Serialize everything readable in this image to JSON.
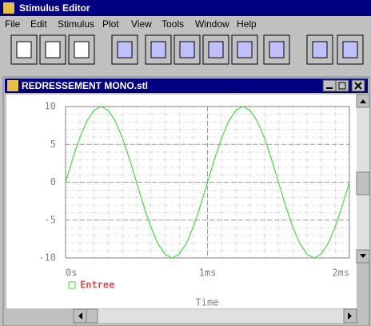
{
  "window_title": "Stimulus Editor",
  "menu": [
    "File",
    "Edit",
    "Stimulus",
    "Plot",
    "View",
    "Tools",
    "Window",
    "Help"
  ],
  "document_title": "REDRESSEMENT MONO.stl",
  "chart_data": {
    "type": "line",
    "x": [
      0,
      5e-05,
      0.0001,
      0.00015,
      0.0002,
      0.00025,
      0.0003,
      0.00035,
      0.0004,
      0.00045,
      0.0005,
      0.00055,
      0.0006,
      0.00065,
      0.0007,
      0.00075,
      0.0008,
      0.00085,
      0.0009,
      0.00095,
      0.001,
      0.00105,
      0.0011,
      0.00115,
      0.0012,
      0.00125,
      0.0013,
      0.00135,
      0.0014,
      0.00145,
      0.0015,
      0.00155,
      0.0016,
      0.00165,
      0.0017,
      0.00175,
      0.0018,
      0.00185,
      0.0019,
      0.00195,
      0.002
    ],
    "series": [
      {
        "name": "Entree",
        "color": "#40e040",
        "values": [
          0,
          3.09,
          5.88,
          8.09,
          9.51,
          10,
          9.51,
          8.09,
          5.88,
          3.09,
          0,
          -3.09,
          -5.88,
          -8.09,
          -9.51,
          -10,
          -9.51,
          -8.09,
          -5.88,
          -3.09,
          0,
          3.09,
          5.88,
          8.09,
          9.51,
          10,
          9.51,
          8.09,
          5.88,
          3.09,
          0,
          -3.09,
          -5.88,
          -8.09,
          -9.51,
          -10,
          -9.51,
          -8.09,
          -5.88,
          -3.09,
          0
        ]
      }
    ],
    "xlabel": "Time",
    "xlim": [
      0,
      0.002
    ],
    "xticks": [
      {
        "value": 0,
        "label": "0s"
      },
      {
        "value": 0.001,
        "label": "1ms"
      },
      {
        "value": 0.002,
        "label": "2ms"
      }
    ],
    "ylim": [
      -10,
      10
    ],
    "yticks": [
      10,
      5,
      0,
      -5,
      -10
    ],
    "grid": true,
    "legend_color": "#e05050"
  }
}
